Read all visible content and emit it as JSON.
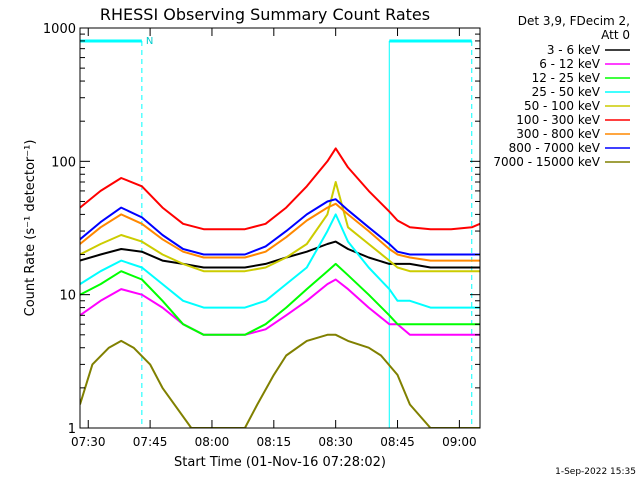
{
  "chart_data": {
    "type": "line",
    "title": "RHESSI Observing Summary Count Rates",
    "xlabel": "Start Time (01-Nov-16 07:28:02)",
    "ylabel": "Count Rate (s⁻¹ detector⁻¹)",
    "y_scale": "log",
    "ylim": [
      1,
      1000
    ],
    "xlim_minutes": [
      0,
      97
    ],
    "x_ticks": [
      {
        "label": "07:30",
        "minute": 2
      },
      {
        "label": "07:45",
        "minute": 17
      },
      {
        "label": "08:00",
        "minute": 32
      },
      {
        "label": "08:15",
        "minute": 47
      },
      {
        "label": "08:30",
        "minute": 62
      },
      {
        "label": "08:45",
        "minute": 77
      },
      {
        "label": "09:00",
        "minute": 92
      }
    ],
    "y_ticks": [
      {
        "label": "1",
        "value": 1
      },
      {
        "label": "10",
        "value": 10
      },
      {
        "label": "100",
        "value": 100
      },
      {
        "label": "1000",
        "value": 1000
      }
    ],
    "legend_header": [
      "Det 3,9, FDecim 2,",
      "Att 0"
    ],
    "legend_position": "right-outside",
    "series": [
      {
        "name": "3 - 6 keV",
        "color": "#000000",
        "x": [
          0,
          5,
          10,
          15,
          20,
          25,
          30,
          35,
          40,
          45,
          50,
          55,
          60,
          62,
          65,
          70,
          75,
          77,
          80,
          85,
          90,
          95,
          97
        ],
        "y": [
          18,
          20,
          22,
          21,
          18,
          17,
          16,
          16,
          16,
          17,
          19,
          21,
          24,
          25,
          22,
          19,
          17,
          17,
          17,
          16,
          16,
          16,
          16
        ]
      },
      {
        "name": "6 - 12 keV",
        "color": "#ff00ff",
        "x": [
          0,
          5,
          10,
          15,
          20,
          25,
          30,
          35,
          40,
          45,
          50,
          55,
          60,
          62,
          65,
          70,
          75,
          77,
          80,
          85,
          90,
          95,
          97
        ],
        "y": [
          7,
          9,
          11,
          10,
          8,
          6,
          5,
          5,
          5,
          5.5,
          7,
          9,
          12,
          13,
          11,
          8,
          6,
          6,
          5,
          5,
          5,
          5,
          5
        ]
      },
      {
        "name": "12 - 25 keV",
        "color": "#00ff00",
        "x": [
          0,
          5,
          10,
          15,
          20,
          25,
          30,
          35,
          40,
          45,
          50,
          55,
          60,
          62,
          65,
          70,
          75,
          77,
          80,
          85,
          90,
          95,
          97
        ],
        "y": [
          10,
          12,
          15,
          13,
          9,
          6,
          5,
          5,
          5,
          6,
          8,
          11,
          15,
          17,
          14,
          10,
          7,
          6,
          6,
          6,
          6,
          6,
          6
        ]
      },
      {
        "name": "25 - 50 keV",
        "color": "#00ffff",
        "x": [
          0,
          5,
          10,
          15,
          20,
          25,
          30,
          35,
          40,
          45,
          50,
          55,
          60,
          62,
          65,
          70,
          75,
          77,
          80,
          85,
          90,
          95,
          97
        ],
        "y": [
          12,
          15,
          18,
          16,
          12,
          9,
          8,
          8,
          8,
          9,
          12,
          16,
          30,
          40,
          25,
          16,
          11,
          9,
          9,
          8,
          8,
          8,
          8
        ]
      },
      {
        "name": "50 - 100 keV",
        "color": "#cccc00",
        "x": [
          0,
          5,
          10,
          15,
          20,
          25,
          30,
          35,
          40,
          45,
          50,
          55,
          60,
          62,
          65,
          70,
          75,
          77,
          80,
          85,
          90,
          95,
          97
        ],
        "y": [
          20,
          24,
          28,
          25,
          20,
          17,
          15,
          15,
          15,
          16,
          19,
          24,
          40,
          70,
          32,
          24,
          18,
          16,
          15,
          15,
          15,
          15,
          15
        ]
      },
      {
        "name": "100 - 300 keV",
        "color": "#ff0000",
        "x": [
          0,
          5,
          10,
          15,
          20,
          25,
          30,
          35,
          40,
          45,
          50,
          55,
          60,
          62,
          65,
          70,
          75,
          77,
          80,
          85,
          90,
          95,
          97
        ],
        "y": [
          45,
          60,
          75,
          65,
          45,
          34,
          31,
          31,
          31,
          34,
          45,
          65,
          100,
          125,
          90,
          60,
          42,
          36,
          32,
          31,
          31,
          32,
          34
        ]
      },
      {
        "name": "300 - 800 keV",
        "color": "#ff8800",
        "x": [
          0,
          5,
          10,
          15,
          20,
          25,
          30,
          35,
          40,
          45,
          50,
          55,
          60,
          62,
          65,
          70,
          75,
          77,
          80,
          85,
          90,
          95,
          97
        ],
        "y": [
          24,
          32,
          40,
          34,
          26,
          21,
          19,
          19,
          19,
          21,
          27,
          36,
          45,
          48,
          40,
          30,
          22,
          20,
          19,
          18,
          18,
          18,
          18
        ]
      },
      {
        "name": "800 - 7000 keV",
        "color": "#0000ff",
        "x": [
          0,
          5,
          10,
          15,
          20,
          25,
          30,
          35,
          40,
          45,
          50,
          55,
          60,
          62,
          65,
          70,
          75,
          77,
          80,
          85,
          90,
          95,
          97
        ],
        "y": [
          26,
          35,
          45,
          38,
          28,
          22,
          20,
          20,
          20,
          23,
          30,
          40,
          50,
          52,
          43,
          32,
          24,
          21,
          20,
          20,
          20,
          20,
          20
        ]
      },
      {
        "name": "7000 - 15000 keV",
        "color": "#808000",
        "x": [
          0,
          3,
          7,
          10,
          13,
          17,
          20,
          27,
          33,
          40,
          43,
          47,
          50,
          55,
          60,
          62,
          65,
          70,
          73,
          77,
          80,
          85,
          90,
          95,
          97
        ],
        "y": [
          1.5,
          3,
          4,
          4.5,
          4,
          3,
          2,
          1,
          1,
          1,
          1.5,
          2.5,
          3.5,
          4.5,
          5,
          5,
          4.5,
          4,
          3.5,
          2.5,
          1.5,
          1,
          1,
          1,
          1
        ]
      }
    ],
    "annotations": {
      "attenuator_marker_label": "N",
      "saa_intervals_minutes": [
        [
          0,
          15
        ],
        [
          75,
          95
        ]
      ]
    },
    "footer_timestamp": "1-Sep-2022 15:35"
  }
}
